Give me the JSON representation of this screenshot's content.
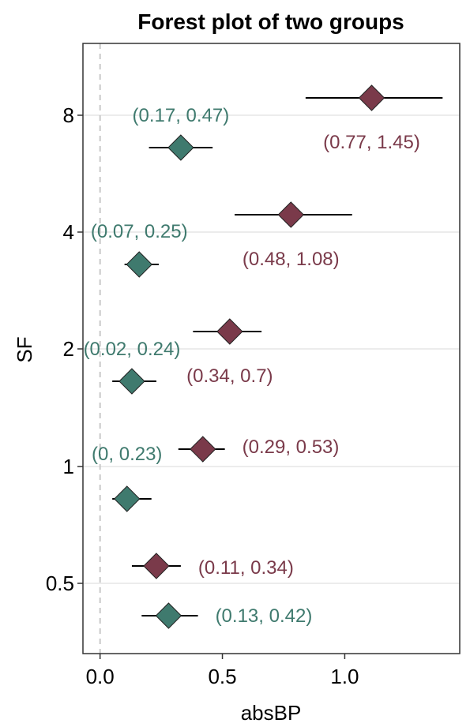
{
  "chart_data": {
    "type": "forest",
    "title": "Forest plot of two groups",
    "xlabel": "absBP",
    "ylabel": "SF",
    "xlim": [
      -0.07,
      1.47
    ],
    "x_ticks": [
      0.0,
      0.5,
      1.0
    ],
    "x_tick_labels": [
      "0.0",
      "0.5",
      "1.0"
    ],
    "y_categories": [
      "0.5",
      "1",
      "2",
      "4",
      "8"
    ],
    "reference_line": {
      "x": 0,
      "style": "dashed"
    },
    "grid": "horizontal major",
    "series": [
      {
        "color": "#7a3a4a",
        "points": [
          {
            "sf": "0.5",
            "estimate": 0.23,
            "lower": 0.13,
            "upper": 0.33,
            "label": "(0.11, 0.34)"
          },
          {
            "sf": "1",
            "estimate": 0.42,
            "lower": 0.32,
            "upper": 0.51,
            "label": "(0.29, 0.53)"
          },
          {
            "sf": "2",
            "estimate": 0.53,
            "lower": 0.38,
            "upper": 0.66,
            "label": "(0.34, 0.7)"
          },
          {
            "sf": "4",
            "estimate": 0.78,
            "lower": 0.55,
            "upper": 1.03,
            "label": "(0.48, 1.08)"
          },
          {
            "sf": "8",
            "estimate": 1.11,
            "lower": 0.84,
            "upper": 1.4,
            "label": "(0.77, 1.45)"
          }
        ]
      },
      {
        "color": "#3f7a6e",
        "points": [
          {
            "sf": "0.5",
            "estimate": 0.28,
            "lower": 0.17,
            "upper": 0.4,
            "label": "(0.13, 0.42)"
          },
          {
            "sf": "1",
            "estimate": 0.11,
            "lower": 0.05,
            "upper": 0.21,
            "label": "(0, 0.23)"
          },
          {
            "sf": "2",
            "estimate": 0.13,
            "lower": 0.05,
            "upper": 0.23,
            "label": "(0.02, 0.24)"
          },
          {
            "sf": "4",
            "estimate": 0.16,
            "lower": 0.1,
            "upper": 0.24,
            "label": "(0.07, 0.25)"
          },
          {
            "sf": "8",
            "estimate": 0.33,
            "lower": 0.2,
            "upper": 0.46,
            "label": "(0.17, 0.47)"
          }
        ]
      }
    ]
  }
}
